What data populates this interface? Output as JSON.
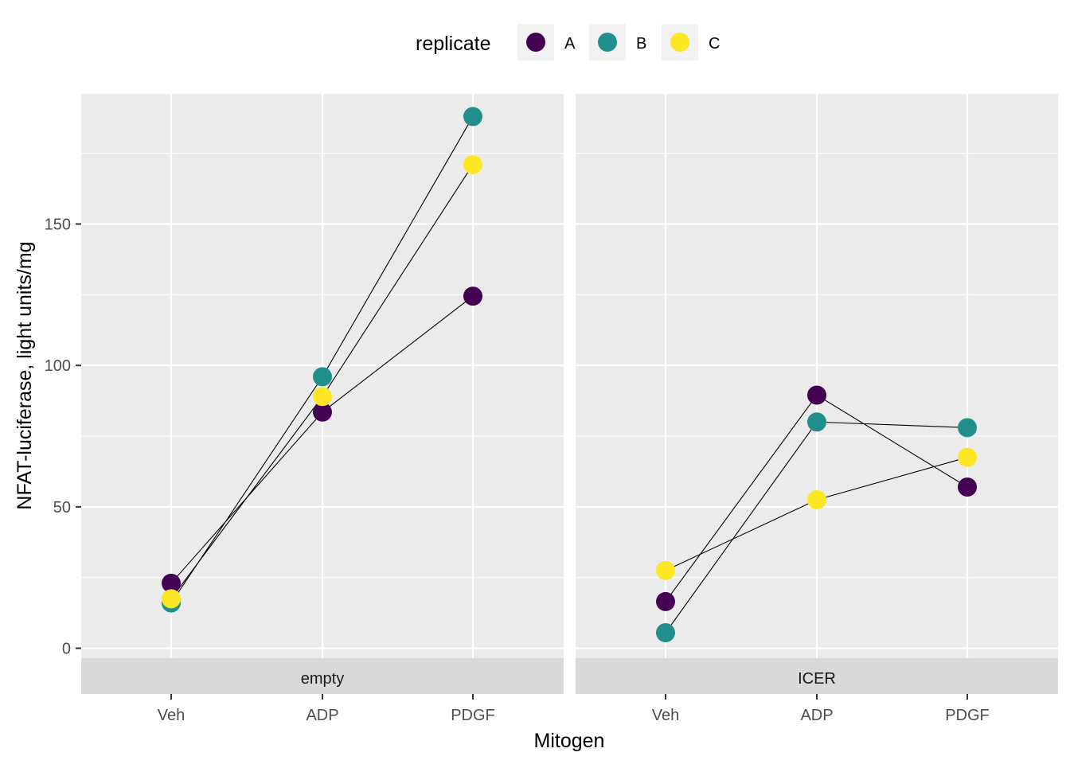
{
  "chart_data": {
    "type": "line",
    "xlabel": "Mitogen",
    "ylabel": "NFAT-luciferase, light units/mg",
    "categories": [
      "Veh",
      "ADP",
      "PDGF"
    ],
    "y_ticks": [
      0,
      50,
      100,
      150
    ],
    "ylim": [
      -3.5,
      196
    ],
    "grid": true,
    "legend": {
      "title": "replicate",
      "position": "top",
      "entries": [
        {
          "name": "A",
          "color": "#440154"
        },
        {
          "name": "B",
          "color": "#21908C"
        },
        {
          "name": "C",
          "color": "#FDE725"
        }
      ]
    },
    "panels": [
      {
        "strip": "empty",
        "series": [
          {
            "name": "A",
            "values": [
              23,
              83.5,
              124.5
            ]
          },
          {
            "name": "B",
            "values": [
              16,
              96,
              188
            ]
          },
          {
            "name": "C",
            "values": [
              17.5,
              89,
              171
            ]
          }
        ]
      },
      {
        "strip": "ICER",
        "series": [
          {
            "name": "A",
            "values": [
              16.5,
              89.5,
              57
            ]
          },
          {
            "name": "B",
            "values": [
              5.5,
              80,
              78
            ]
          },
          {
            "name": "C",
            "values": [
              27.5,
              52.5,
              67.5
            ]
          }
        ]
      }
    ]
  }
}
